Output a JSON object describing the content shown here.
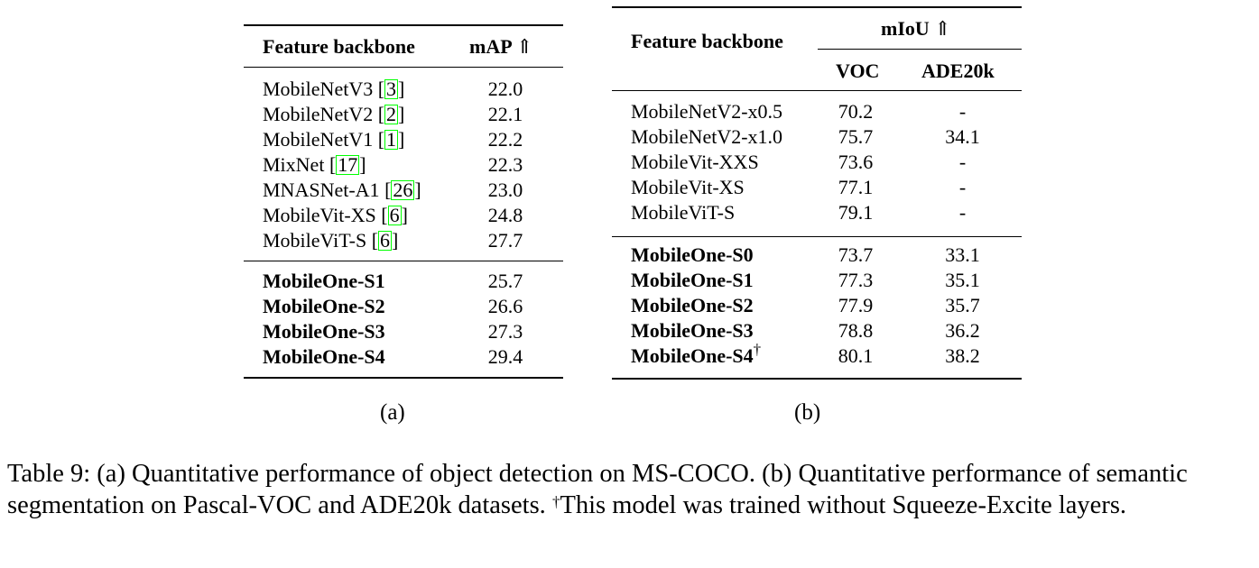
{
  "table_a": {
    "header": {
      "col1": "Feature backbone",
      "col2": "mAP",
      "arrow": "⇑"
    },
    "baseline_rows": [
      {
        "name": "MobileNetV3 ",
        "ref": "3",
        "value": "22.0"
      },
      {
        "name": "MobileNetV2 ",
        "ref": "2",
        "value": "22.1"
      },
      {
        "name": "MobileNetV1 ",
        "ref": "1",
        "value": "22.2"
      },
      {
        "name": "MixNet ",
        "ref": "17",
        "value": "22.3"
      },
      {
        "name": "MNASNet-A1 ",
        "ref": "26",
        "value": "23.0"
      },
      {
        "name": "MobileVit-XS ",
        "ref": "6",
        "value": "24.8"
      },
      {
        "name": "MobileViT-S ",
        "ref": "6",
        "value": "27.7"
      }
    ],
    "mobileone_rows": [
      {
        "name": "MobileOne-S1",
        "value": "25.7"
      },
      {
        "name": "MobileOne-S2",
        "value": "26.6"
      },
      {
        "name": "MobileOne-S3",
        "value": "27.3"
      },
      {
        "name": "MobileOne-S4",
        "value": "29.4"
      }
    ],
    "label": "(a)"
  },
  "table_b": {
    "header": {
      "col1": "Feature backbone",
      "group": "mIoU",
      "arrow": "⇑",
      "sub1": "VOC",
      "sub2": "ADE20k"
    },
    "baseline_rows": [
      {
        "name": "MobileNetV2-x0.5",
        "voc": "70.2",
        "ade": "-"
      },
      {
        "name": "MobileNetV2-x1.0",
        "voc": "75.7",
        "ade": "34.1"
      },
      {
        "name": "MobileVit-XXS",
        "voc": "73.6",
        "ade": "-"
      },
      {
        "name": "MobileVit-XS",
        "voc": "77.1",
        "ade": "-"
      },
      {
        "name": "MobileViT-S",
        "voc": "79.1",
        "ade": "-"
      }
    ],
    "mobileone_rows": [
      {
        "name": "MobileOne-S0",
        "voc": "73.7",
        "ade": "33.1"
      },
      {
        "name": "MobileOne-S1",
        "voc": "77.3",
        "ade": "35.1"
      },
      {
        "name": "MobileOne-S2",
        "voc": "77.9",
        "ade": "35.7"
      },
      {
        "name": "MobileOne-S3",
        "voc": "78.8",
        "ade": "36.2"
      },
      {
        "name": "MobileOne-S4",
        "dagger": "†",
        "voc": "80.1",
        "ade": "38.2"
      }
    ],
    "label": "(b)"
  },
  "caption": {
    "text_1": "Table 9: (a) Quantitative performance of object detection on MS-COCO. (b) Quantitative performance of semantic segmentation on Pascal-VOC and ADE20k datasets. ",
    "dagger": "†",
    "text_2": "This model was trained without Squeeze-Excite layers."
  }
}
